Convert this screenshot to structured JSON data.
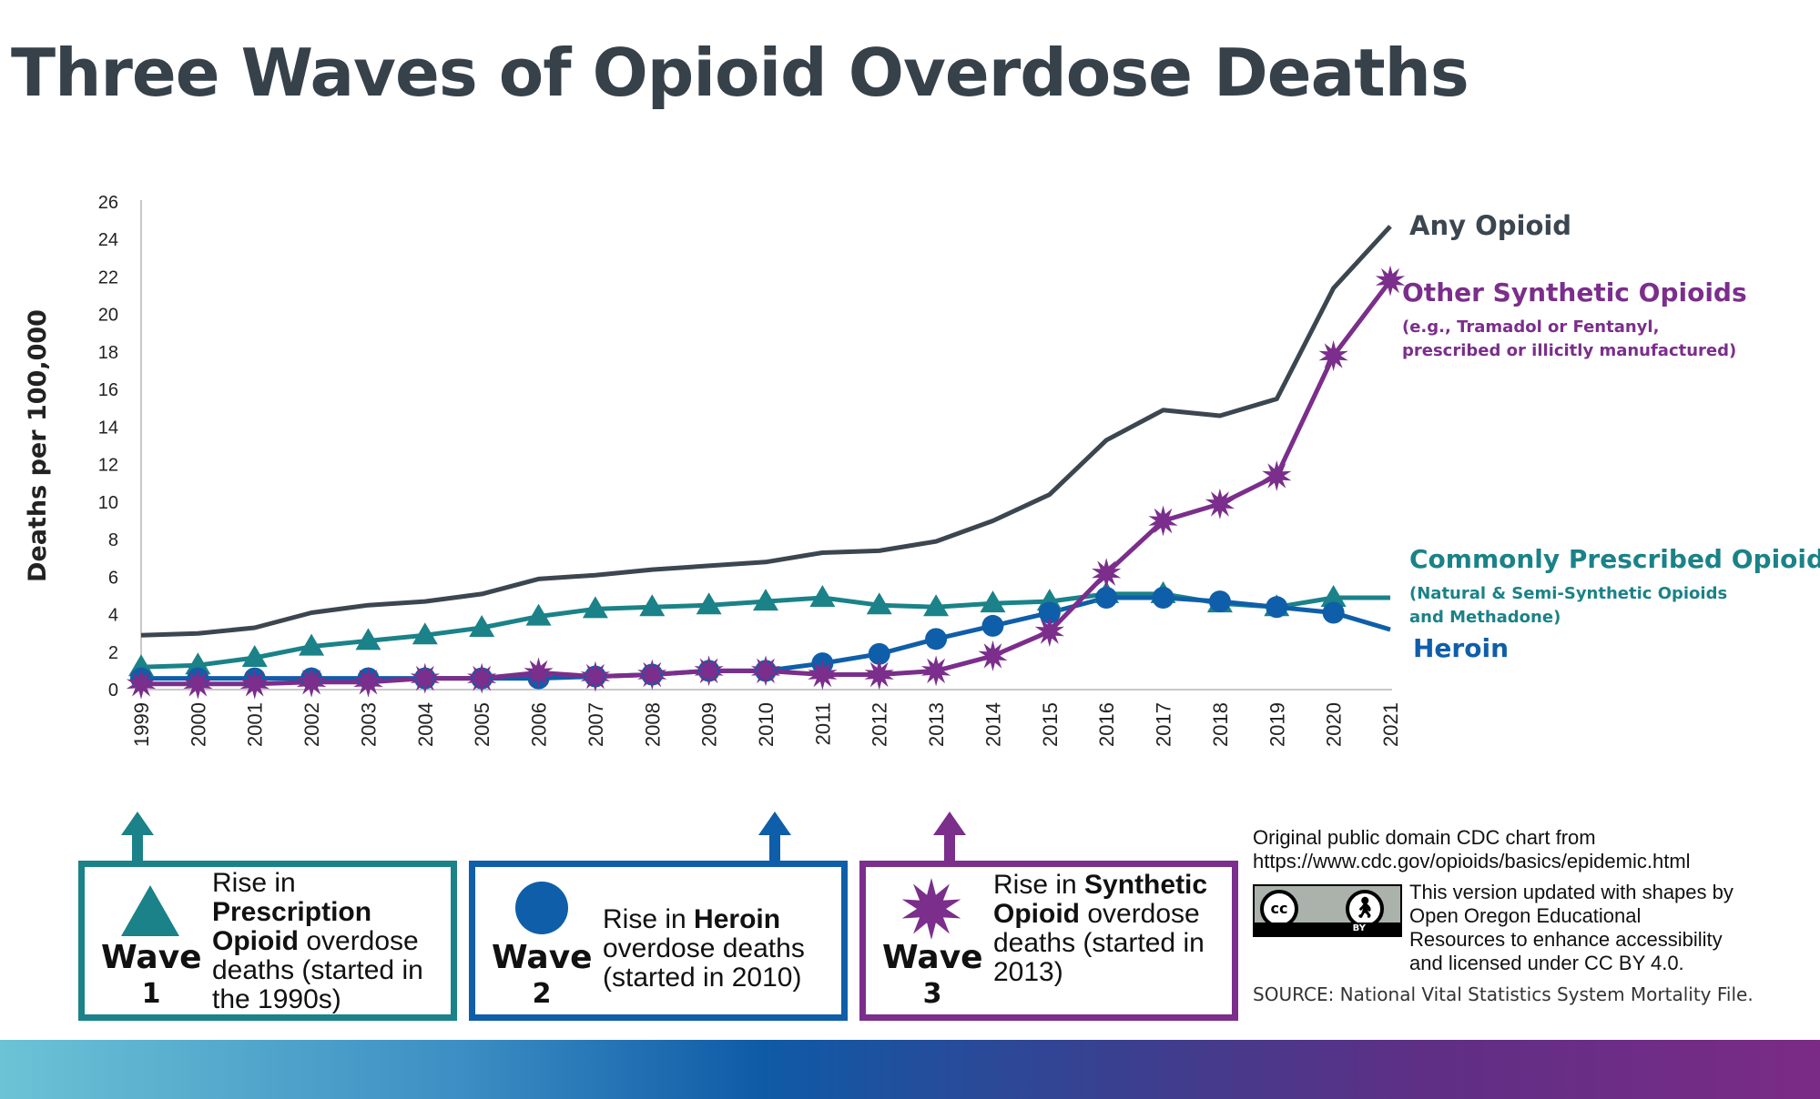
{
  "title": "Three Waves of Opioid Overdose Deaths",
  "colors": {
    "any_opioid": "#3b4650",
    "synthetic": "#7b2e8b",
    "prescribed": "#1a8288",
    "heroin": "#0f5ea9",
    "title": "#36414a"
  },
  "chart_data": {
    "type": "line",
    "ylabel": "Deaths per 100,000",
    "xlabel": "",
    "ylim": [
      0,
      26
    ],
    "yticks": [
      "0",
      "2",
      "4",
      "6",
      "8",
      "10",
      "12",
      "14",
      "16",
      "18",
      "20",
      "22",
      "24",
      "26"
    ],
    "x": [
      "1999",
      "2000",
      "2001",
      "2002",
      "2003",
      "2004",
      "2005",
      "2006",
      "2007",
      "2008",
      "2009",
      "2010",
      "2011",
      "2012",
      "2013",
      "2014",
      "2015",
      "2016",
      "2017",
      "2018",
      "2019",
      "2020",
      "2021"
    ],
    "grid": false,
    "legend": "inline labels at right",
    "series": [
      {
        "name": "Any Opioid",
        "marker": "none",
        "values": [
          2.9,
          3.0,
          3.3,
          4.1,
          4.5,
          4.7,
          5.1,
          5.9,
          6.1,
          6.4,
          6.6,
          6.8,
          7.3,
          7.4,
          7.9,
          9.0,
          10.4,
          13.3,
          14.9,
          14.6,
          15.5,
          21.4,
          24.7
        ]
      },
      {
        "name": "Other Synthetic Opioids",
        "note": [
          "(e.g., Tramadol or Fentanyl,",
          "prescribed or illicitly manufactured)"
        ],
        "marker": "star",
        "values": [
          0.3,
          0.3,
          0.3,
          0.4,
          0.4,
          0.6,
          0.6,
          0.9,
          0.7,
          0.8,
          1.0,
          1.0,
          0.8,
          0.8,
          1.0,
          1.8,
          3.1,
          6.2,
          9.0,
          9.9,
          11.4,
          17.8,
          21.8
        ]
      },
      {
        "name": "Commonly Prescribed Opioids",
        "note": [
          "(Natural & Semi-Synthetic Opioids",
          "and Methadone)"
        ],
        "marker": "triangle",
        "values": [
          1.2,
          1.3,
          1.7,
          2.3,
          2.6,
          2.9,
          3.3,
          3.9,
          4.3,
          4.4,
          4.5,
          4.7,
          4.9,
          4.5,
          4.4,
          4.6,
          4.7,
          5.1,
          5.1,
          4.6,
          4.4,
          4.9,
          4.9
        ]
      },
      {
        "name": "Heroin",
        "marker": "circle",
        "values": [
          0.6,
          0.6,
          0.6,
          0.6,
          0.6,
          0.6,
          0.6,
          0.6,
          0.7,
          0.8,
          1.0,
          1.0,
          1.4,
          1.9,
          2.7,
          3.4,
          4.1,
          4.9,
          4.9,
          4.7,
          4.4,
          4.1,
          3.2
        ]
      }
    ]
  },
  "waves": [
    {
      "word": "Wave",
      "number": "1",
      "desc_pre": "Rise in ",
      "desc_bold": "Prescription Opioid",
      "desc_post": " overdose deaths (started in the 1990s)"
    },
    {
      "word": "Wave",
      "number": "2",
      "desc_pre": "Rise in ",
      "desc_bold": "Heroin",
      "desc_post": " overdose deaths (started in 2010)"
    },
    {
      "word": "Wave",
      "number": "3",
      "desc_pre": "Rise in ",
      "desc_bold": "Synthetic Opioid",
      "desc_post": " overdose deaths (started in 2013)"
    }
  ],
  "credits": {
    "original_line1": "Original public domain CDC chart from",
    "original_line2": "https://www.cdc.gov/opioids/basics/epidemic.html",
    "updated": [
      "This version updated with shapes by",
      "Open Oregon Educational",
      "Resources to enhance accessibility",
      "and licensed under CC BY 4.0."
    ],
    "source": "SOURCE: National Vital Statistics System Mortality File.",
    "cc_badge": {
      "cc": "cc",
      "by_icon": "person-icon",
      "by": "BY"
    }
  }
}
